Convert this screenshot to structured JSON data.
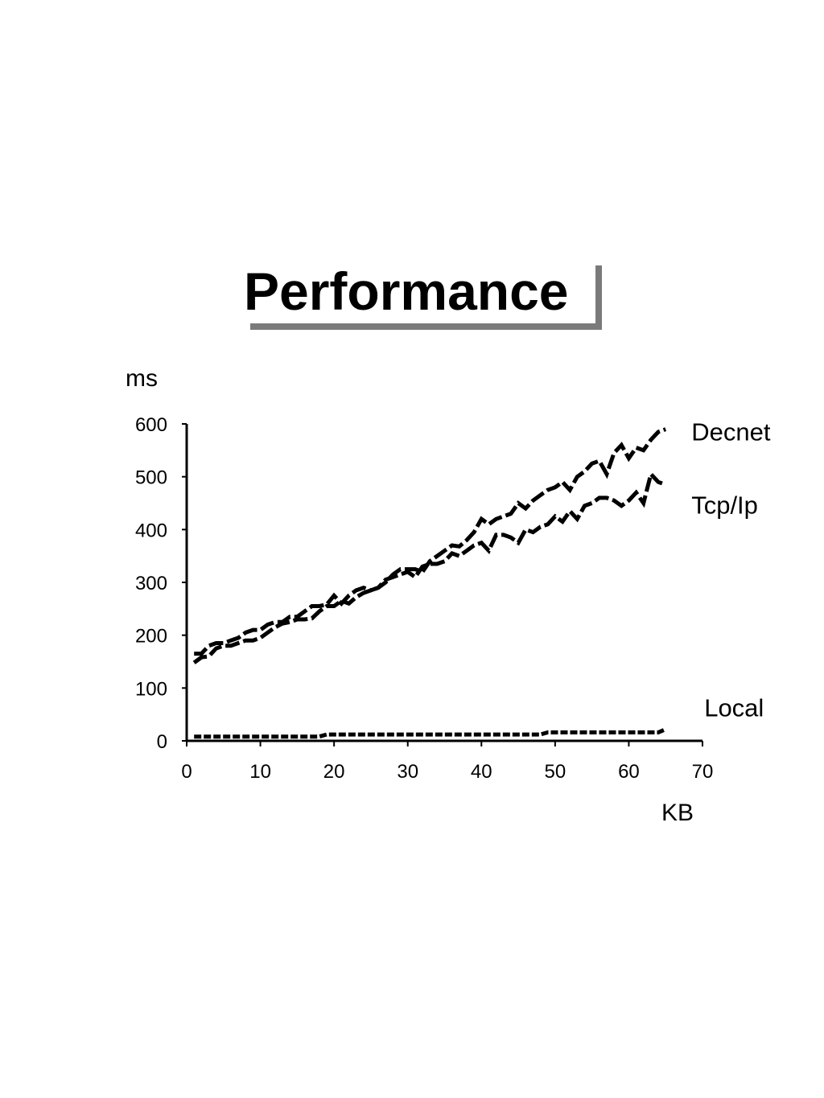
{
  "slide": {
    "title": "Performance"
  },
  "chart_data": {
    "type": "line",
    "title": "Performance",
    "xlabel": "KB",
    "ylabel": "ms",
    "xlim": [
      0,
      70
    ],
    "ylim": [
      0,
      600
    ],
    "xticks": [
      0,
      10,
      20,
      30,
      40,
      50,
      60,
      70
    ],
    "yticks": [
      0,
      100,
      200,
      300,
      400,
      500,
      600
    ],
    "grid": false,
    "legend": "labels at right end of each series",
    "line_color": "#000000",
    "line_style": "dashed",
    "series": [
      {
        "name": "Decnet",
        "x": [
          1,
          2,
          3,
          4,
          5,
          6,
          7,
          8,
          9,
          10,
          11,
          12,
          13,
          14,
          15,
          16,
          17,
          18,
          19,
          20,
          21,
          22,
          23,
          24,
          25,
          26,
          27,
          28,
          29,
          30,
          31,
          32,
          33,
          34,
          35,
          36,
          37,
          38,
          39,
          40,
          41,
          42,
          43,
          44,
          45,
          46,
          47,
          48,
          49,
          50,
          51,
          52,
          53,
          54,
          55,
          56,
          57,
          58,
          59,
          60,
          61,
          62,
          63,
          64,
          65
        ],
        "y": [
          148,
          158,
          160,
          175,
          180,
          180,
          185,
          190,
          190,
          195,
          205,
          215,
          222,
          225,
          230,
          230,
          232,
          245,
          255,
          255,
          265,
          260,
          272,
          280,
          285,
          290,
          300,
          315,
          325,
          325,
          325,
          320,
          340,
          350,
          360,
          370,
          368,
          380,
          395,
          420,
          410,
          420,
          425,
          430,
          450,
          440,
          455,
          465,
          475,
          480,
          490,
          475,
          500,
          510,
          525,
          530,
          505,
          545,
          560,
          535,
          555,
          550,
          570,
          585,
          590
        ]
      },
      {
        "name": "Tcp/Ip",
        "x": [
          1,
          2,
          3,
          4,
          5,
          6,
          7,
          8,
          9,
          10,
          11,
          12,
          13,
          14,
          15,
          16,
          17,
          18,
          19,
          20,
          21,
          22,
          23,
          24,
          25,
          26,
          27,
          28,
          29,
          30,
          31,
          32,
          33,
          34,
          35,
          36,
          37,
          38,
          39,
          40,
          41,
          42,
          43,
          44,
          45,
          46,
          47,
          48,
          49,
          50,
          51,
          52,
          53,
          54,
          55,
          56,
          57,
          58,
          59,
          60,
          61,
          62,
          63,
          64,
          65
        ],
        "y": [
          165,
          165,
          180,
          185,
          185,
          190,
          195,
          205,
          210,
          210,
          220,
          225,
          225,
          235,
          235,
          245,
          255,
          255,
          258,
          275,
          260,
          275,
          285,
          290,
          285,
          290,
          305,
          310,
          315,
          320,
          310,
          330,
          335,
          335,
          340,
          355,
          350,
          360,
          370,
          375,
          360,
          390,
          390,
          385,
          375,
          400,
          395,
          405,
          410,
          425,
          415,
          435,
          420,
          445,
          450,
          460,
          460,
          455,
          445,
          455,
          470,
          450,
          505,
          490,
          485
        ]
      },
      {
        "name": "Local",
        "x": [
          1,
          2,
          3,
          4,
          5,
          6,
          7,
          8,
          9,
          10,
          11,
          12,
          13,
          14,
          15,
          16,
          17,
          18,
          19,
          20,
          21,
          22,
          23,
          24,
          25,
          26,
          27,
          28,
          29,
          30,
          31,
          32,
          33,
          34,
          35,
          36,
          37,
          38,
          39,
          40,
          41,
          42,
          43,
          44,
          45,
          46,
          47,
          48,
          49,
          50,
          51,
          52,
          53,
          54,
          55,
          56,
          57,
          58,
          59,
          60,
          61,
          62,
          63,
          64,
          65
        ],
        "y": [
          8,
          8,
          8,
          8,
          8,
          8,
          8,
          8,
          8,
          8,
          8,
          8,
          8,
          8,
          8,
          8,
          8,
          8,
          12,
          12,
          12,
          12,
          12,
          12,
          12,
          12,
          12,
          12,
          12,
          12,
          12,
          12,
          12,
          12,
          12,
          12,
          12,
          12,
          12,
          12,
          12,
          12,
          12,
          12,
          12,
          12,
          12,
          12,
          16,
          16,
          16,
          16,
          16,
          16,
          16,
          16,
          16,
          16,
          16,
          16,
          16,
          16,
          16,
          16,
          22
        ]
      }
    ]
  }
}
